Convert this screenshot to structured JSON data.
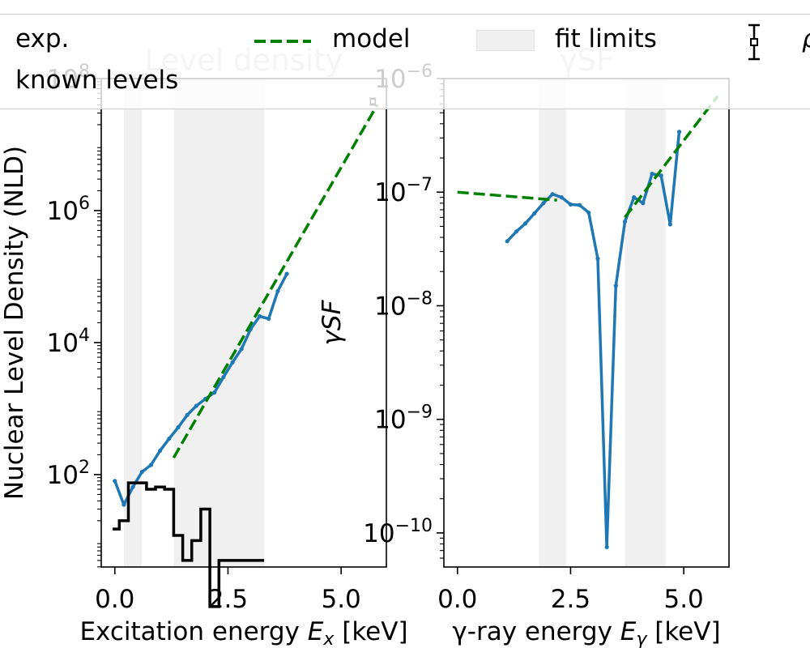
{
  "chart_data": [
    {
      "type": "line",
      "title": "Level density",
      "xlabel_prefix": "Excitation energy ",
      "xlabel_var": "E",
      "xlabel_sub": "x",
      "xlabel_suffix": " [keV]",
      "ylabel": "Nuclear Level Density (NLD)",
      "y_scale": "log",
      "xlim": [
        -0.3,
        6.0
      ],
      "ylim_log10": [
        0.6,
        8.0
      ],
      "xticks": [
        0.0,
        2.5,
        5.0
      ],
      "xtick_labels": [
        "0.0",
        "2.5",
        "5.0"
      ],
      "yticks_log10": [
        2,
        4,
        6,
        8
      ],
      "ytick_base": "10",
      "ytick_exponents": [
        "2",
        "4",
        "6",
        "8"
      ],
      "fit_limits": [
        [
          0.2,
          0.6
        ],
        [
          1.3,
          3.3
        ]
      ],
      "series": [
        {
          "name": "exp.",
          "color": "#1f77b4",
          "x": [
            0.0,
            0.2,
            0.4,
            0.6,
            0.8,
            1.0,
            1.2,
            1.4,
            1.6,
            1.8,
            2.0,
            2.2,
            2.4,
            2.6,
            2.8,
            3.0,
            3.2,
            3.4,
            3.6,
            3.8
          ],
          "y": [
            80,
            35,
            65,
            110,
            140,
            230,
            350,
            520,
            800,
            1100,
            1400,
            1750,
            3000,
            5000,
            8000,
            16000,
            25000,
            23000,
            60000,
            110000
          ]
        },
        {
          "name": "model",
          "color": "#008000",
          "style": "dashed",
          "x": [
            1.3,
            5.8
          ],
          "y": [
            180,
            40000000
          ]
        },
        {
          "name": "known levels",
          "color": "#000000",
          "style": "step",
          "edges": [
            -0.05,
            0.1,
            0.3,
            0.5,
            0.7,
            0.9,
            1.1,
            1.3,
            1.5,
            1.7,
            1.9,
            2.1,
            2.3,
            2.5,
            2.7,
            2.9,
            3.1,
            3.3
          ],
          "y": [
            15,
            20,
            75,
            75,
            60,
            65,
            60,
            12,
            5,
            10,
            30,
            1,
            5,
            5,
            5,
            5,
            5
          ]
        }
      ],
      "rho_point": {
        "x": 5.7,
        "y": 45000000,
        "y_low": 40000000,
        "y_high": 50000000
      }
    },
    {
      "type": "line",
      "title": "γSF",
      "xlabel_prefix": "γ-ray energy ",
      "xlabel_var": "E",
      "xlabel_sub": "γ",
      "xlabel_suffix": " [keV]",
      "ylabel": "γSF",
      "y_scale": "log",
      "xlim": [
        -0.3,
        6.0
      ],
      "ylim_log10": [
        -10.3,
        -6.0
      ],
      "xticks": [
        0.0,
        2.5,
        5.0
      ],
      "xtick_labels": [
        "0.0",
        "2.5",
        "5.0"
      ],
      "yticks_log10": [
        -10,
        -9,
        -8,
        -7,
        -6
      ],
      "ytick_base": "10",
      "ytick_exponents": [
        "−10",
        "−9",
        "−8",
        "−7",
        "−6"
      ],
      "fit_limits": [
        [
          1.8,
          2.4
        ],
        [
          3.7,
          4.6
        ]
      ],
      "series": [
        {
          "name": "exp.",
          "color": "#1f77b4",
          "x": [
            1.1,
            1.3,
            1.5,
            1.7,
            1.9,
            2.1,
            2.3,
            2.5,
            2.7,
            2.9,
            3.1,
            3.3,
            3.5,
            3.7,
            3.9,
            4.1,
            4.3,
            4.5,
            4.7,
            4.9
          ],
          "y": [
            3.7e-08,
            4.5e-08,
            5.3e-08,
            6.5e-08,
            8e-08,
            9.6e-08,
            9e-08,
            7.8e-08,
            7.7e-08,
            6.6e-08,
            2.6e-08,
            7.5e-11,
            1.5e-08,
            5.5e-08,
            9e-08,
            8e-08,
            1.45e-07,
            1.4e-07,
            5.2e-08,
            3.4e-07
          ]
        },
        {
          "name": "model",
          "color": "#008000",
          "style": "dashed",
          "segments": [
            {
              "x": [
                0.0,
                2.2
              ],
              "y": [
                1e-07,
                8.5e-08
              ]
            },
            {
              "x": [
                3.7,
                5.75
              ],
              "y": [
                6e-08,
                7e-07
              ]
            }
          ]
        }
      ]
    }
  ],
  "legend": {
    "exp_label": "exp.",
    "model_label": "model",
    "fit_label": "fit limits",
    "known_label": "known levels",
    "rho_label": "ρ"
  },
  "colors": {
    "exp": "#1f77b4",
    "model": "#008000",
    "fit": "#f0f0f0",
    "known": "#000000",
    "title_gray": "#c8c8c8"
  }
}
